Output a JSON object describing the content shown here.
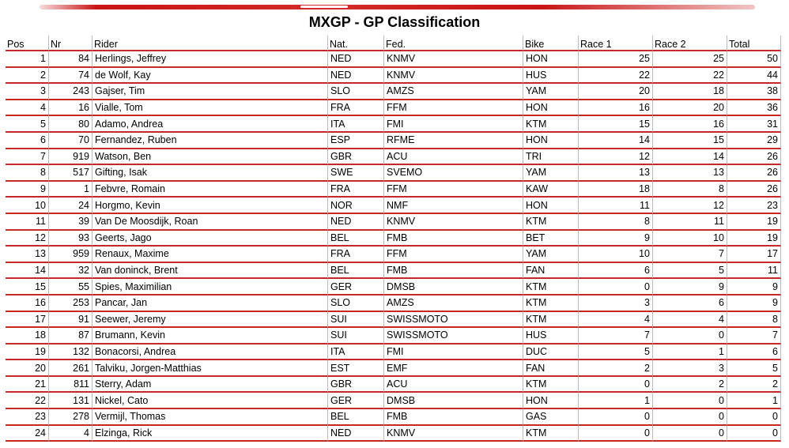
{
  "title": "MXGP - GP Classification",
  "columns": [
    "Pos",
    "Nr",
    "Rider",
    "Nat.",
    "Fed.",
    "Bike",
    "Race 1",
    "Race 2",
    "Total"
  ],
  "rows": [
    {
      "pos": "1",
      "nr": "84",
      "rider": "Herlings, Jeffrey",
      "nat": "NED",
      "fed": "KNMV",
      "bike": "HON",
      "race1": "25",
      "race2": "25",
      "total": "50"
    },
    {
      "pos": "2",
      "nr": "74",
      "rider": "de Wolf, Kay",
      "nat": "NED",
      "fed": "KNMV",
      "bike": "HUS",
      "race1": "22",
      "race2": "22",
      "total": "44"
    },
    {
      "pos": "3",
      "nr": "243",
      "rider": "Gajser, Tim",
      "nat": "SLO",
      "fed": "AMZS",
      "bike": "YAM",
      "race1": "20",
      "race2": "18",
      "total": "38"
    },
    {
      "pos": "4",
      "nr": "16",
      "rider": "Vialle, Tom",
      "nat": "FRA",
      "fed": "FFM",
      "bike": "HON",
      "race1": "16",
      "race2": "20",
      "total": "36"
    },
    {
      "pos": "5",
      "nr": "80",
      "rider": "Adamo, Andrea",
      "nat": "ITA",
      "fed": "FMI",
      "bike": "KTM",
      "race1": "15",
      "race2": "16",
      "total": "31"
    },
    {
      "pos": "6",
      "nr": "70",
      "rider": "Fernandez, Ruben",
      "nat": "ESP",
      "fed": "RFME",
      "bike": "HON",
      "race1": "14",
      "race2": "15",
      "total": "29"
    },
    {
      "pos": "7",
      "nr": "919",
      "rider": "Watson, Ben",
      "nat": "GBR",
      "fed": "ACU",
      "bike": "TRI",
      "race1": "12",
      "race2": "14",
      "total": "26"
    },
    {
      "pos": "8",
      "nr": "517",
      "rider": "Gifting, Isak",
      "nat": "SWE",
      "fed": "SVEMO",
      "bike": "YAM",
      "race1": "13",
      "race2": "13",
      "total": "26"
    },
    {
      "pos": "9",
      "nr": "1",
      "rider": "Febvre, Romain",
      "nat": "FRA",
      "fed": "FFM",
      "bike": "KAW",
      "race1": "18",
      "race2": "8",
      "total": "26"
    },
    {
      "pos": "10",
      "nr": "24",
      "rider": "Horgmo, Kevin",
      "nat": "NOR",
      "fed": "NMF",
      "bike": "HON",
      "race1": "11",
      "race2": "12",
      "total": "23"
    },
    {
      "pos": "11",
      "nr": "39",
      "rider": "Van De Moosdijk, Roan",
      "nat": "NED",
      "fed": "KNMV",
      "bike": "KTM",
      "race1": "8",
      "race2": "11",
      "total": "19"
    },
    {
      "pos": "12",
      "nr": "93",
      "rider": "Geerts, Jago",
      "nat": "BEL",
      "fed": "FMB",
      "bike": "BET",
      "race1": "9",
      "race2": "10",
      "total": "19"
    },
    {
      "pos": "13",
      "nr": "959",
      "rider": "Renaux, Maxime",
      "nat": "FRA",
      "fed": "FFM",
      "bike": "YAM",
      "race1": "10",
      "race2": "7",
      "total": "17"
    },
    {
      "pos": "14",
      "nr": "32",
      "rider": "Van doninck, Brent",
      "nat": "BEL",
      "fed": "FMB",
      "bike": "FAN",
      "race1": "6",
      "race2": "5",
      "total": "11"
    },
    {
      "pos": "15",
      "nr": "55",
      "rider": "Spies, Maximilian",
      "nat": "GER",
      "fed": "DMSB",
      "bike": "KTM",
      "race1": "0",
      "race2": "9",
      "total": "9"
    },
    {
      "pos": "16",
      "nr": "253",
      "rider": "Pancar, Jan",
      "nat": "SLO",
      "fed": "AMZS",
      "bike": "KTM",
      "race1": "3",
      "race2": "6",
      "total": "9"
    },
    {
      "pos": "17",
      "nr": "91",
      "rider": "Seewer, Jeremy",
      "nat": "SUI",
      "fed": "SWISSMOTO",
      "bike": "KTM",
      "race1": "4",
      "race2": "4",
      "total": "8"
    },
    {
      "pos": "18",
      "nr": "87",
      "rider": "Brumann, Kevin",
      "nat": "SUI",
      "fed": "SWISSMOTO",
      "bike": "HUS",
      "race1": "7",
      "race2": "0",
      "total": "7"
    },
    {
      "pos": "19",
      "nr": "132",
      "rider": "Bonacorsi, Andrea",
      "nat": "ITA",
      "fed": "FMI",
      "bike": "DUC",
      "race1": "5",
      "race2": "1",
      "total": "6"
    },
    {
      "pos": "20",
      "nr": "261",
      "rider": "Talviku, Jorgen-Matthias",
      "nat": "EST",
      "fed": "EMF",
      "bike": "FAN",
      "race1": "2",
      "race2": "3",
      "total": "5"
    },
    {
      "pos": "21",
      "nr": "811",
      "rider": "Sterry, Adam",
      "nat": "GBR",
      "fed": "ACU",
      "bike": "KTM",
      "race1": "0",
      "race2": "2",
      "total": "2"
    },
    {
      "pos": "22",
      "nr": "131",
      "rider": "Nickel, Cato",
      "nat": "GER",
      "fed": "DMSB",
      "bike": "HON",
      "race1": "1",
      "race2": "0",
      "total": "1"
    },
    {
      "pos": "23",
      "nr": "278",
      "rider": "Vermijl, Thomas",
      "nat": "BEL",
      "fed": "FMB",
      "bike": "GAS",
      "race1": "0",
      "race2": "0",
      "total": "0"
    },
    {
      "pos": "24",
      "nr": "4",
      "rider": "Elzinga, Rick",
      "nat": "NED",
      "fed": "KNMV",
      "bike": "KTM",
      "race1": "0",
      "race2": "0",
      "total": "0"
    }
  ]
}
